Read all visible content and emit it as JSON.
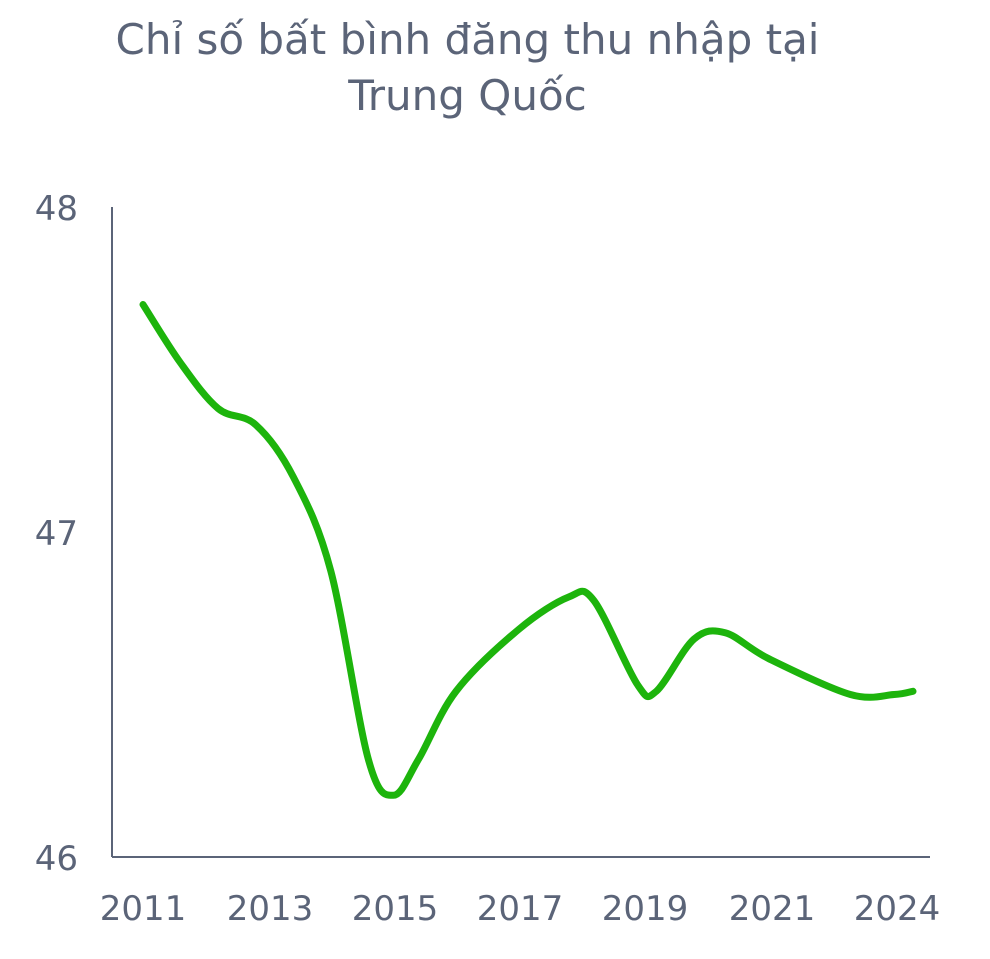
{
  "chart_data": {
    "type": "line",
    "title_lines": [
      "Chỉ số bất bình đăng thu nhập tại",
      "Trung Quốc"
    ],
    "x_tick_labels": [
      "2011",
      "2013",
      "2015",
      "2017",
      "2019",
      "2021",
      "2024"
    ],
    "y_tick_labels": [
      "48",
      "47",
      "46"
    ],
    "ylim": [
      46,
      48
    ],
    "grid": false,
    "legend": "none",
    "series": [
      {
        "color": "#1db40c",
        "points": [
          {
            "x": 2011.0,
            "y": 47.7
          },
          {
            "x": 2011.6,
            "y": 47.52
          },
          {
            "x": 2012.2,
            "y": 47.38
          },
          {
            "x": 2012.8,
            "y": 47.33
          },
          {
            "x": 2013.4,
            "y": 47.17
          },
          {
            "x": 2014.0,
            "y": 46.88
          },
          {
            "x": 2014.6,
            "y": 46.3
          },
          {
            "x": 2015.0,
            "y": 46.19
          },
          {
            "x": 2015.4,
            "y": 46.3
          },
          {
            "x": 2016.0,
            "y": 46.51
          },
          {
            "x": 2017.0,
            "y": 46.7
          },
          {
            "x": 2017.8,
            "y": 46.8
          },
          {
            "x": 2018.2,
            "y": 46.79
          },
          {
            "x": 2018.9,
            "y": 46.53
          },
          {
            "x": 2019.2,
            "y": 46.51
          },
          {
            "x": 2019.8,
            "y": 46.67
          },
          {
            "x": 2020.3,
            "y": 46.69
          },
          {
            "x": 2021.0,
            "y": 46.61
          },
          {
            "x": 2022.3,
            "y": 46.5
          },
          {
            "x": 2023.0,
            "y": 46.5
          },
          {
            "x": 2023.3,
            "y": 46.51
          }
        ]
      }
    ],
    "colors": {
      "axis": "#5b6478",
      "text": "#5b6478",
      "line": "#1db40c"
    }
  }
}
